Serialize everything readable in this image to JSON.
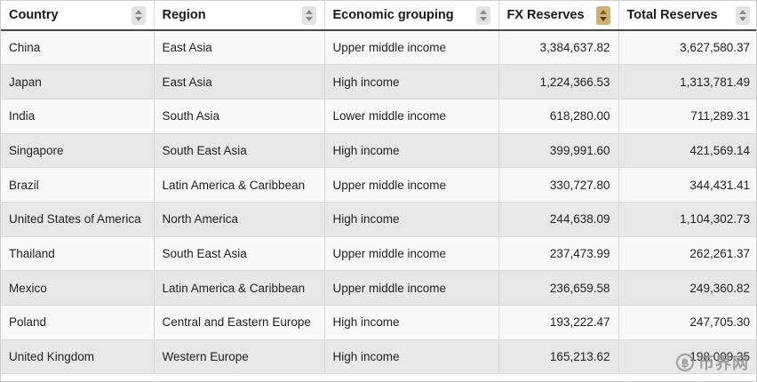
{
  "colors": {
    "active_sort_bg": "#cfb271",
    "header_underline": "#4a4a4a",
    "row_odd": "#f9f9f9",
    "row_even": "#e8e8e8"
  },
  "table": {
    "columns": [
      {
        "label": "Country",
        "align": "left",
        "sorted": "none"
      },
      {
        "label": "Region",
        "align": "left",
        "sorted": "none"
      },
      {
        "label": "Economic grouping",
        "align": "left",
        "sorted": "none"
      },
      {
        "label": "FX Reserves",
        "align": "right",
        "sorted": "desc"
      },
      {
        "label": "Total Reserves",
        "align": "right",
        "sorted": "none"
      }
    ],
    "rows": [
      [
        "China",
        "East Asia",
        "Upper middle income",
        "3,384,637.82",
        "3,627,580.37"
      ],
      [
        "Japan",
        "East Asia",
        "High income",
        "1,224,366.53",
        "1,313,781.49"
      ],
      [
        "India",
        "South Asia",
        "Lower middle income",
        "618,280.00",
        "711,289.31"
      ],
      [
        "Singapore",
        "South East Asia",
        "High income",
        "399,991.60",
        "421,569.14"
      ],
      [
        "Brazil",
        "Latin America & Caribbean",
        "Upper middle income",
        "330,727.80",
        "344,431.41"
      ],
      [
        "United States of America",
        "North America",
        "High income",
        "244,638.09",
        "1,104,302.73"
      ],
      [
        "Thailand",
        "South East Asia",
        "Upper middle income",
        "237,473.99",
        "262,261.37"
      ],
      [
        "Mexico",
        "Latin America & Caribbean",
        "Upper middle income",
        "236,659.58",
        "249,360.82"
      ],
      [
        "Poland",
        "Central and Eastern Europe",
        "High income",
        "193,222.47",
        "247,705.30"
      ],
      [
        "United Kingdom",
        "Western Europe",
        "High income",
        "165,213.62",
        "198,009.35"
      ]
    ]
  },
  "watermark": {
    "coin_symbol": "฿",
    "text": "币界网"
  }
}
